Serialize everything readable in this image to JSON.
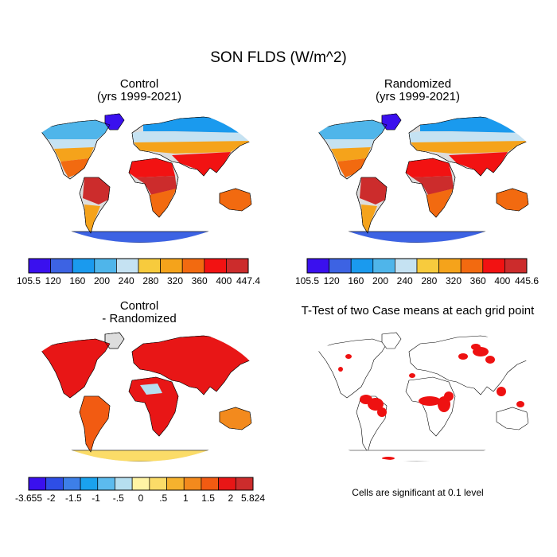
{
  "figure": {
    "title": "SON FLDS (W/m^2)"
  },
  "colors": {
    "scale_main": [
      "#3a10ee",
      "#3d63e3",
      "#1a9aee",
      "#4fb5ea",
      "#c5e2f2",
      "#f7cb3d",
      "#f5a31b",
      "#f26a10",
      "#f21212",
      "#cc2c2c"
    ],
    "scale_diff": [
      "#3a10ee",
      "#2e4ee6",
      "#3d7fe8",
      "#1aa2ee",
      "#5cbbee",
      "#b6dff0",
      "#fff4a4",
      "#fbdc68",
      "#f6b22e",
      "#f38a1d",
      "#f25b12",
      "#e81616",
      "#cc2c2c"
    ],
    "ocean": "#ffffff",
    "significant": "#ee1111"
  },
  "chart_data": [
    {
      "type": "map",
      "panel_id": "control",
      "title": "Control",
      "subtitle": "(yrs 1999-2021)",
      "colorbar": {
        "labels": [
          "105.5",
          "120",
          "160",
          "200",
          "240",
          "280",
          "320",
          "360",
          "400",
          "447.4"
        ],
        "min": 105.5,
        "max": 447.4
      }
    },
    {
      "type": "map",
      "panel_id": "randomized",
      "title": "Randomized",
      "subtitle": "(yrs 1999-2021)",
      "colorbar": {
        "labels": [
          "105.5",
          "120",
          "160",
          "200",
          "240",
          "280",
          "320",
          "360",
          "400",
          "445.6"
        ],
        "min": 105.5,
        "max": 445.6
      }
    },
    {
      "type": "map",
      "panel_id": "difference",
      "title": "Control",
      "subtitle": "- Randomized",
      "colorbar": {
        "labels": [
          "-3.655",
          "-2",
          "-1.5",
          "-1",
          "-.5",
          "0",
          ".5",
          "1",
          "1.5",
          "2",
          "5.824"
        ],
        "min": -3.655,
        "max": 5.824
      }
    },
    {
      "type": "map",
      "panel_id": "ttest",
      "title": "T-Test of two Case means at each grid point",
      "note": "Cells are significant at 0.1 level"
    }
  ]
}
